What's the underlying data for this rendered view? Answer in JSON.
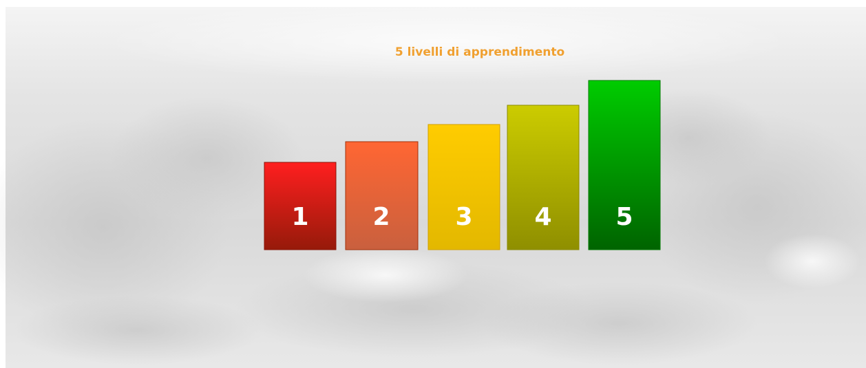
{
  "header": {
    "title": "5 livelli di apprendimento"
  },
  "bars": [
    {
      "label": "1"
    },
    {
      "label": "2"
    },
    {
      "label": "3"
    },
    {
      "label": "4"
    },
    {
      "label": "5"
    }
  ]
}
